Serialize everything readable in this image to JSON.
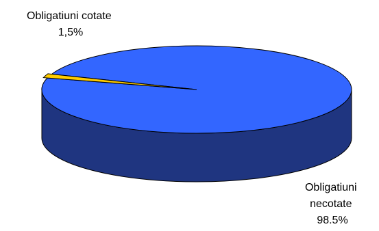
{
  "chart_data": {
    "type": "pie",
    "style": "3d",
    "slices": [
      {
        "name": "Obligatiuni necotate",
        "value": 98.5,
        "label_lines": [
          "Obligatiuni",
          "necotate",
          "98.5%"
        ],
        "color": "#3366FF",
        "side_color": "#1F3580",
        "exploded": false
      },
      {
        "name": "Obligatiuni cotate",
        "value": 1.5,
        "label_lines": [
          "Obligatiuni cotate",
          "1,5%"
        ],
        "color": "#FFCC00",
        "side_color": "#B38F00",
        "exploded": true
      }
    ],
    "legend": "none"
  }
}
